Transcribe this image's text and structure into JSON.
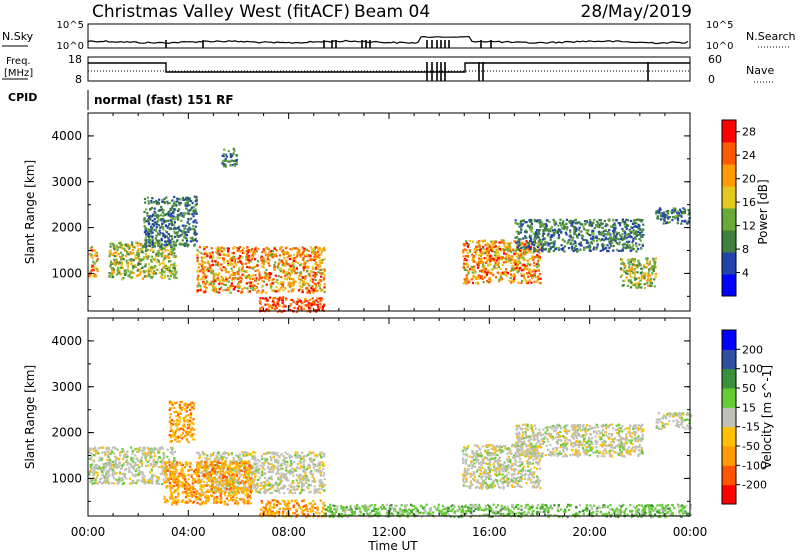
{
  "header": {
    "title": "Christmas Valley West (fitACF)",
    "beam": "Beam 04",
    "date": "28/May/2019",
    "cpid_label": "CPID",
    "cpid_value": "normal (fast) 151 RF"
  },
  "strip_nsky": {
    "left_label": "N.Sky",
    "right_label": "N.Search",
    "left_ticks": [
      "10^5",
      "10^0"
    ],
    "right_ticks": [
      "10^5",
      "10^0"
    ]
  },
  "strip_freq": {
    "left_label_1": "Freq.",
    "left_label_2": "[MHz]",
    "right_label": "Nave",
    "left_ticks": [
      "18",
      "8"
    ],
    "right_ticks": [
      "60",
      "0"
    ]
  },
  "x_axis": {
    "label": "Time UT",
    "ticks": [
      "00:00",
      "04:00",
      "08:00",
      "12:00",
      "16:00",
      "20:00",
      "00:00"
    ]
  },
  "colors": {
    "power": [
      "#0000ff",
      "#2244aa",
      "#3f7f3f",
      "#6aaa3a",
      "#e3c820",
      "#ff9a00",
      "#ff5a00",
      "#ff0000"
    ],
    "velocity": [
      "#ff0000",
      "#ff5500",
      "#ff9a00",
      "#ffc000",
      "#c0c0b8",
      "#66cc33",
      "#3a8f3a",
      "#2c4fa0",
      "#0000ff"
    ]
  },
  "chart_data": [
    {
      "type": "heatmap",
      "title": "Power",
      "ylabel": "Slant Range [km]",
      "ylim": [
        180,
        4500
      ],
      "y_ticks": [
        "1000",
        "2000",
        "3000",
        "4000"
      ],
      "xlabel": "Time UT",
      "colorbar": {
        "label": "Power [dB]",
        "ticks": [
          "4",
          "8",
          "12",
          "16",
          "20",
          "24",
          "28"
        ],
        "range": [
          0,
          30
        ]
      },
      "regions": [
        {
          "t0": 0.0,
          "t1": 0.35,
          "r0": 950,
          "r1": 1600,
          "level": "high"
        },
        {
          "t0": 0.8,
          "t1": 3.5,
          "r0": 900,
          "r1": 1700,
          "level": "mid"
        },
        {
          "t0": 2.2,
          "t1": 4.3,
          "r0": 1600,
          "r1": 2700,
          "level": "low"
        },
        {
          "t0": 4.3,
          "t1": 9.4,
          "r0": 600,
          "r1": 1600,
          "level": "high"
        },
        {
          "t0": 6.8,
          "t1": 9.4,
          "r0": 180,
          "r1": 500,
          "level": "peak"
        },
        {
          "t0": 5.3,
          "t1": 5.9,
          "r0": 3350,
          "r1": 3750,
          "level": "low"
        },
        {
          "t0": 14.9,
          "t1": 18.0,
          "r0": 800,
          "r1": 1750,
          "level": "high"
        },
        {
          "t0": 17.0,
          "t1": 22.1,
          "r0": 1500,
          "r1": 2200,
          "level": "low"
        },
        {
          "t0": 21.2,
          "t1": 22.6,
          "r0": 700,
          "r1": 1350,
          "level": "mid"
        },
        {
          "t0": 22.6,
          "t1": 24.0,
          "r0": 2100,
          "r1": 2450,
          "level": "low"
        }
      ]
    },
    {
      "type": "heatmap",
      "title": "Velocity",
      "ylabel": "Slant Range [km]",
      "ylim": [
        180,
        4500
      ],
      "y_ticks": [
        "1000",
        "2000",
        "3000",
        "4000"
      ],
      "xlabel": "Time UT",
      "colorbar": {
        "label": "Velocity [m s^-1]",
        "ticks": [
          "-200",
          "-100",
          "-50",
          "-15",
          "15",
          "50",
          "100",
          "200"
        ],
        "range": [
          -250,
          250
        ]
      },
      "regions": [
        {
          "t0": 0.0,
          "t1": 3.5,
          "r0": 900,
          "r1": 1700,
          "level": "neutral"
        },
        {
          "t0": 3.2,
          "t1": 4.2,
          "r0": 1800,
          "r1": 2700,
          "level": "negative"
        },
        {
          "t0": 4.3,
          "t1": 9.4,
          "r0": 700,
          "r1": 1600,
          "level": "neutral"
        },
        {
          "t0": 3.0,
          "t1": 6.5,
          "r0": 450,
          "r1": 1400,
          "level": "negative"
        },
        {
          "t0": 6.8,
          "t1": 9.4,
          "r0": 180,
          "r1": 550,
          "level": "negative"
        },
        {
          "t0": 9.4,
          "t1": 24.0,
          "r0": 180,
          "r1": 450,
          "level": "positive"
        },
        {
          "t0": 14.9,
          "t1": 18.0,
          "r0": 800,
          "r1": 1750,
          "level": "neutral"
        },
        {
          "t0": 17.0,
          "t1": 22.1,
          "r0": 1500,
          "r1": 2200,
          "level": "neutral"
        },
        {
          "t0": 22.6,
          "t1": 24.0,
          "r0": 2100,
          "r1": 2450,
          "level": "neutral"
        }
      ]
    }
  ]
}
